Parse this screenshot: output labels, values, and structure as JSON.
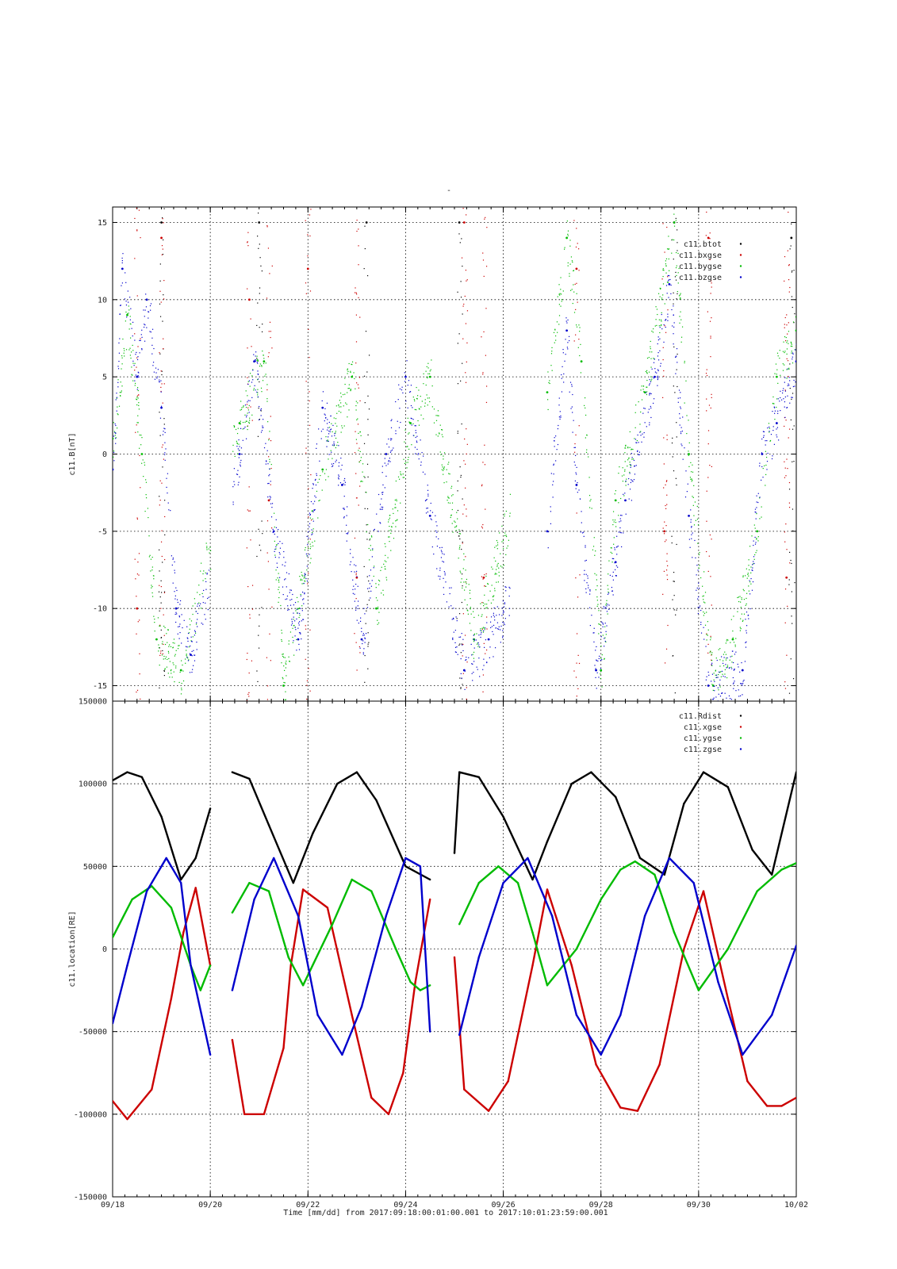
{
  "figure": {
    "title": "-",
    "xlabel": "Time [mm/dd]  from 2017:09:18:00:01:00.001  to  2017:10:01:23:59:00.001"
  },
  "chart_data": [
    {
      "type": "scatter",
      "panel": "top",
      "ylabel": "c11.B[nT]",
      "ylim": [
        -16,
        16
      ],
      "yticks": [
        15,
        10,
        5,
        0,
        -5,
        -10,
        -15
      ],
      "xticks": [
        "09/18",
        "09/20",
        "09/22",
        "09/24",
        "09/26",
        "09/28",
        "09/30",
        "10/02"
      ],
      "xlim_days": [
        0,
        14
      ],
      "grid": true,
      "legend_position": "top-right",
      "data_gaps_days": [
        [
          2.0,
          2.45
        ],
        [
          8.15,
          8.9
        ]
      ],
      "series": [
        {
          "name": "c11.btot",
          "color": "#000000",
          "x": [
            1.0,
            3.0,
            5.2,
            7.1,
            11.5,
            13.9
          ],
          "y": [
            15,
            15,
            15,
            15,
            15,
            14
          ]
        },
        {
          "name": "c11.bxgse",
          "color": "#cc0000",
          "x": [
            0.5,
            1.0,
            2.8,
            3.2,
            4.0,
            5.0,
            7.2,
            7.6,
            9.5,
            11.3,
            12.2,
            13.8
          ],
          "y": [
            -10,
            14,
            10,
            -3,
            12,
            -8,
            15,
            -8,
            12,
            -5,
            14,
            -8
          ]
        },
        {
          "name": "c11.bygse",
          "color": "#00bb00",
          "x": [
            0.0,
            0.3,
            0.6,
            0.9,
            1.4,
            2.6,
            3.1,
            3.5,
            4.3,
            4.9,
            5.4,
            6.1,
            6.5,
            7.4,
            8.9,
            9.3,
            9.6,
            10.0,
            10.3,
            10.9,
            11.5,
            11.8,
            12.3,
            12.7,
            13.2,
            13.6,
            14.0
          ],
          "y": [
            1,
            9,
            0,
            -12,
            -14,
            2,
            6,
            -15,
            -1,
            5,
            -10,
            2,
            5,
            -12,
            4,
            14,
            6,
            -14,
            -3,
            4,
            15,
            0,
            -15,
            -12,
            -5,
            5,
            8
          ]
        },
        {
          "name": "c11.bzgse",
          "color": "#0000cc",
          "x": [
            0.0,
            0.2,
            0.5,
            0.7,
            1.0,
            1.3,
            1.6,
            2.6,
            2.9,
            3.3,
            3.8,
            4.3,
            4.7,
            5.1,
            5.6,
            6.0,
            6.5,
            7.2,
            7.7,
            8.9,
            9.3,
            9.5,
            9.9,
            10.3,
            10.5,
            11.1,
            11.4,
            11.8,
            12.2,
            12.9,
            13.3,
            13.6,
            14.0
          ],
          "y": [
            -1,
            12,
            5,
            10,
            3,
            -10,
            -13,
            0,
            6,
            -5,
            -12,
            3,
            -2,
            -12,
            0,
            5,
            -4,
            -14,
            -12,
            -5,
            8,
            -2,
            -14,
            -7,
            -3,
            5,
            11,
            -4,
            -15,
            -14,
            0,
            2,
            6
          ]
        }
      ]
    },
    {
      "type": "line",
      "panel": "bottom",
      "ylabel": "c11.location[RE]",
      "ylim": [
        -150000,
        150000
      ],
      "yticks": [
        150000,
        100000,
        50000,
        0,
        -50000,
        -100000,
        -150000
      ],
      "xticks": [
        "09/18",
        "09/20",
        "09/22",
        "09/24",
        "09/26",
        "09/28",
        "09/30",
        "10/02"
      ],
      "xlim_days": [
        0,
        14
      ],
      "grid": true,
      "legend_position": "top-right",
      "series": [
        {
          "name": "c11.Rdist",
          "color": "#000000",
          "x": [
            0.0,
            0.3,
            0.6,
            1.0,
            1.4,
            1.7,
            2.0,
            2.45,
            2.8,
            3.2,
            3.7,
            4.1,
            4.6,
            5.0,
            5.4,
            6.0,
            6.5,
            7.0,
            7.1,
            7.5,
            8.0,
            8.6,
            8.9,
            9.4,
            9.8,
            10.3,
            10.8,
            11.3,
            11.7,
            12.1,
            12.6,
            13.1,
            13.5,
            14.0
          ],
          "y": [
            102000,
            107000,
            104000,
            80000,
            42000,
            55000,
            85000,
            107000,
            103000,
            75000,
            40000,
            70000,
            100000,
            107000,
            90000,
            50000,
            42000,
            58000,
            107000,
            104000,
            80000,
            42000,
            65000,
            100000,
            107000,
            92000,
            55000,
            45000,
            88000,
            107000,
            98000,
            60000,
            45000,
            107000
          ]
        },
        {
          "name": "c11.xgse",
          "color": "#cc0000",
          "x": [
            0.0,
            0.3,
            0.8,
            1.2,
            1.45,
            1.7,
            2.0,
            2.45,
            2.7,
            3.1,
            3.5,
            3.65,
            3.9,
            4.4,
            4.9,
            5.3,
            5.65,
            5.95,
            6.2,
            6.5,
            7.0,
            7.2,
            7.7,
            8.1,
            8.6,
            8.9,
            9.4,
            9.9,
            10.4,
            10.75,
            11.2,
            11.7,
            12.1,
            12.6,
            13.0,
            13.4,
            13.7,
            14.0
          ],
          "y": [
            -92000,
            -103000,
            -85000,
            -30000,
            10000,
            37000,
            -10000,
            -55000,
            -100000,
            -100000,
            -60000,
            -10000,
            36000,
            25000,
            -40000,
            -90000,
            -100000,
            -75000,
            -20000,
            30000,
            -5000,
            -85000,
            -98000,
            -80000,
            -10000,
            36000,
            -10000,
            -70000,
            -96000,
            -98000,
            -70000,
            0,
            35000,
            -30000,
            -80000,
            -95000,
            -95000,
            -90000
          ]
        },
        {
          "name": "c11.ygse",
          "color": "#00bb00",
          "x": [
            0.0,
            0.4,
            0.8,
            1.2,
            1.6,
            1.8,
            2.0,
            2.45,
            2.8,
            3.2,
            3.6,
            3.9,
            4.5,
            4.9,
            5.3,
            5.8,
            6.1,
            6.3,
            6.5,
            7.1,
            7.5,
            7.9,
            8.3,
            8.6,
            8.9,
            9.5,
            10.0,
            10.4,
            10.7,
            11.1,
            11.5,
            12.0,
            12.6,
            13.2,
            13.7,
            14.0
          ],
          "y": [
            7000,
            30000,
            38000,
            25000,
            -10000,
            -25000,
            -10000,
            22000,
            40000,
            35000,
            -5000,
            -22000,
            15000,
            42000,
            35000,
            0,
            -20000,
            -25000,
            -22000,
            15000,
            40000,
            50000,
            40000,
            10000,
            -22000,
            0,
            30000,
            48000,
            53000,
            45000,
            10000,
            -25000,
            0,
            35000,
            48000,
            52000
          ]
        },
        {
          "name": "c11.zgse",
          "color": "#0000cc",
          "x": [
            0.0,
            0.3,
            0.7,
            1.1,
            1.4,
            1.6,
            2.0,
            2.45,
            2.9,
            3.3,
            3.8,
            4.2,
            4.7,
            5.1,
            5.6,
            6.0,
            6.3,
            6.5,
            7.1,
            7.5,
            8.0,
            8.5,
            9.0,
            9.5,
            10.0,
            10.4,
            10.9,
            11.4,
            11.9,
            12.4,
            12.9,
            13.5,
            14.0
          ],
          "y": [
            -45000,
            -10000,
            35000,
            55000,
            40000,
            -10000,
            -64000,
            -25000,
            30000,
            55000,
            20000,
            -40000,
            -64000,
            -35000,
            20000,
            55000,
            50000,
            -50000,
            -52000,
            -5000,
            40000,
            55000,
            20000,
            -40000,
            -64000,
            -40000,
            20000,
            55000,
            40000,
            -20000,
            -64000,
            -40000,
            2000
          ]
        }
      ]
    }
  ]
}
